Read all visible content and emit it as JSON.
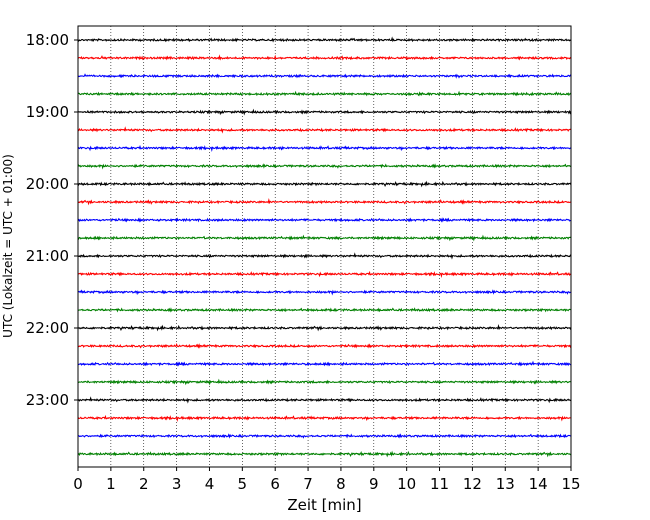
{
  "chart_data": {
    "type": "line",
    "title": "",
    "xlabel": "Zeit  [min]",
    "ylabel": "UTC (Lokalzeit = UTC + 01:00)",
    "xlim": [
      0,
      15
    ],
    "x_ticks": [
      0,
      1,
      2,
      3,
      4,
      5,
      6,
      7,
      8,
      9,
      10,
      11,
      12,
      13,
      14,
      15
    ],
    "y_tick_labels": [
      "18:00",
      "19:00",
      "20:00",
      "21:00",
      "22:00",
      "23:00"
    ],
    "grid": "vertical dotted",
    "trace_colors": [
      "#000000",
      "#ff0000",
      "#0000ff",
      "#008000"
    ],
    "traces": [
      {
        "start": "18:00"
      },
      {
        "start": "18:15"
      },
      {
        "start": "18:30"
      },
      {
        "start": "18:45"
      },
      {
        "start": "19:00"
      },
      {
        "start": "19:15"
      },
      {
        "start": "19:30"
      },
      {
        "start": "19:45"
      },
      {
        "start": "20:00"
      },
      {
        "start": "20:15"
      },
      {
        "start": "20:30"
      },
      {
        "start": "20:45"
      },
      {
        "start": "21:00"
      },
      {
        "start": "21:15"
      },
      {
        "start": "21:30"
      },
      {
        "start": "21:45"
      },
      {
        "start": "22:00"
      },
      {
        "start": "22:15"
      },
      {
        "start": "22:30"
      },
      {
        "start": "22:45"
      },
      {
        "start": "23:00"
      },
      {
        "start": "23:15"
      },
      {
        "start": "23:30"
      },
      {
        "start": "23:45"
      }
    ]
  }
}
